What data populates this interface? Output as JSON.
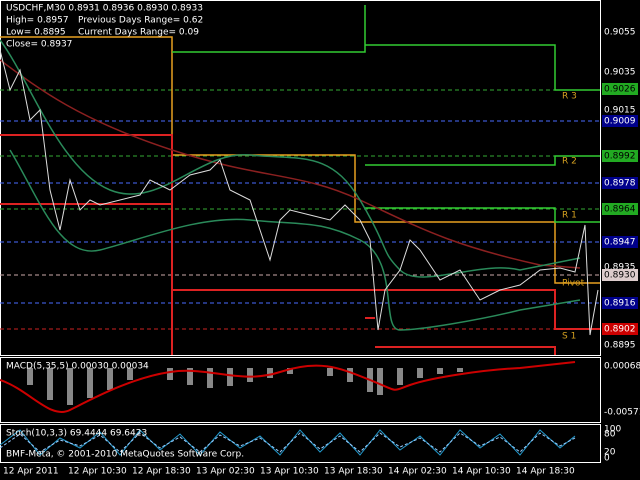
{
  "info": {
    "symbol_line": "USDCHF,M30  0.8931 0.8936 0.8930 0.8933",
    "high": "High= 0.8957",
    "prev_range": "Previous Days Range= 0.62",
    "low": "Low= 0.8895",
    "cur_range": "Current Days Range= 0.09",
    "close": "Close= 0.8937"
  },
  "price_axis": [
    "0.9055",
    "0.9035",
    "0.9026",
    "0.9015",
    "0.9009",
    "0.8992",
    "0.8978",
    "0.8964",
    "0.8947",
    "0.8935",
    "0.8930",
    "0.8916",
    "0.8902",
    "0.8895"
  ],
  "levels": [
    "R 3",
    "R 2",
    "R 1",
    "Pivot",
    "S 1"
  ],
  "macd": {
    "label": "MACD(5,35,5) 0.00030 0.00034",
    "axis": [
      "0.00068",
      "-0.00571"
    ]
  },
  "stoch": {
    "label": "Stoch(10,3,3) 69.4444 69.6423",
    "axis": [
      "100",
      "80",
      "20",
      "0"
    ]
  },
  "copyright": "BMF-Meta, © 2001-2010 MetaQuotes Software Corp.",
  "time_axis": [
    "12 Apr 2011",
    "12 Apr 10:30",
    "12 Apr 18:30",
    "13 Apr 02:30",
    "13 Apr 10:30",
    "13 Apr 18:30",
    "14 Apr 02:30",
    "14 Apr 10:30",
    "14 Apr 18:30"
  ]
}
